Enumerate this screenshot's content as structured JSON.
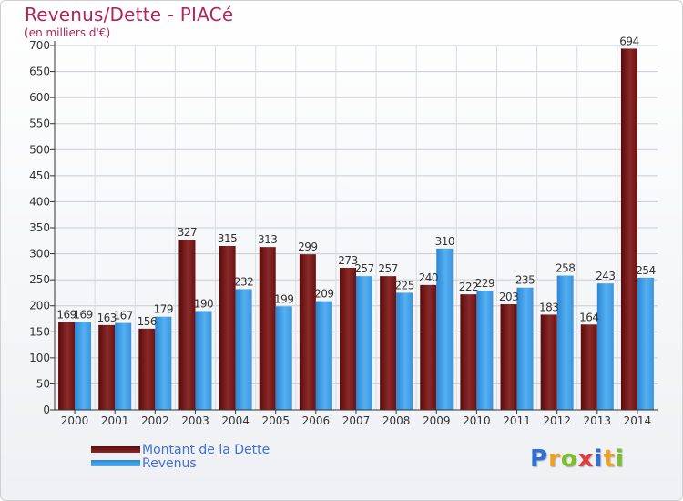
{
  "chart_data": {
    "type": "bar",
    "title": "Revenus/Dette - PIACé",
    "subtitle": "(en milliers d'€)",
    "xlabel": "",
    "ylabel": "",
    "ylim": [
      0,
      700
    ],
    "yticks": [
      0,
      50,
      100,
      150,
      200,
      250,
      300,
      350,
      400,
      450,
      500,
      550,
      600,
      650,
      700
    ],
    "grid": true,
    "categories": [
      "2000",
      "2001",
      "2002",
      "2003",
      "2004",
      "2005",
      "2006",
      "2007",
      "2008",
      "2009",
      "2010",
      "2011",
      "2012",
      "2013",
      "2014"
    ],
    "series": [
      {
        "name": "Montant de la Dette",
        "color": "#7a1a1a",
        "values": [
          169,
          163,
          156,
          327,
          315,
          313,
          299,
          273,
          257,
          240,
          222,
          203,
          183,
          164,
          694
        ]
      },
      {
        "name": "Revenus",
        "color": "#3d9be0",
        "values": [
          169,
          167,
          179,
          190,
          232,
          199,
          209,
          257,
          225,
          310,
          229,
          235,
          258,
          243,
          254
        ]
      }
    ],
    "legend_position": "bottom-left"
  },
  "brand": {
    "letters": [
      "P",
      "r",
      "o",
      "x",
      "i",
      "t",
      "i"
    ],
    "colors": [
      "#2f6fd6",
      "#f0a020",
      "#7bbf2a",
      "#e23c3c",
      "#2f6fd6",
      "#f0a020",
      "#7bbf2a"
    ]
  }
}
